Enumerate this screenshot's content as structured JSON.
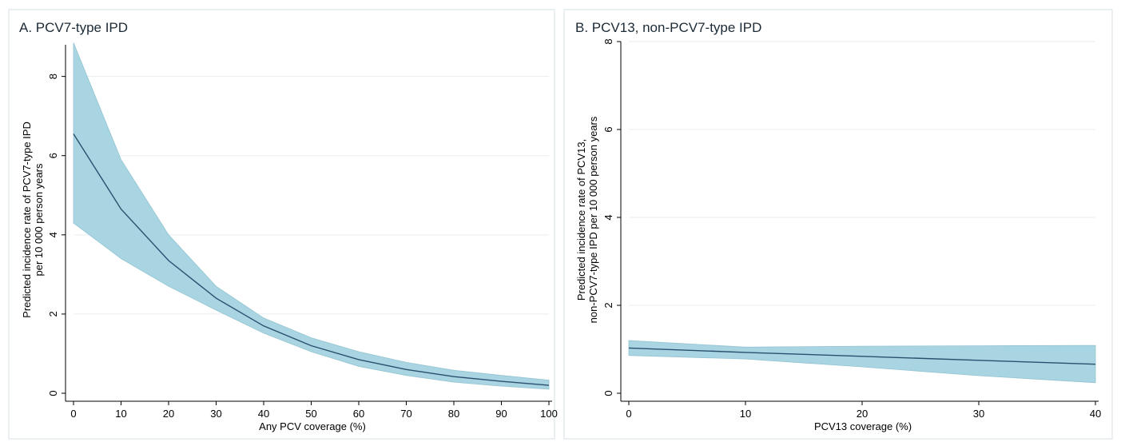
{
  "figure": {
    "accent_band_color": "#a8d5e1",
    "line_color": "#2b4f6e"
  },
  "chart_data": [
    {
      "type": "line",
      "title": "A. PCV7-type IPD",
      "xlabel": "Any PCV coverage (%)",
      "ylabel_lines": [
        "Predicted incidence rate of PCV7-type IPD",
        "per 10 000 person years"
      ],
      "xlim": [
        0,
        100
      ],
      "ylim": [
        0,
        8.8
      ],
      "xticks": [
        0,
        10,
        20,
        30,
        40,
        50,
        60,
        70,
        80,
        90,
        100
      ],
      "yticks": [
        0,
        2,
        4,
        6,
        8
      ],
      "grid": true,
      "x": [
        0,
        10,
        20,
        30,
        40,
        50,
        60,
        70,
        80,
        90,
        100
      ],
      "series": [
        {
          "role": "estimate",
          "values": [
            6.55,
            4.65,
            3.35,
            2.4,
            1.7,
            1.2,
            0.85,
            0.6,
            0.42,
            0.3,
            0.2
          ]
        },
        {
          "role": "upper",
          "values": [
            8.85,
            5.9,
            4.0,
            2.7,
            1.9,
            1.4,
            1.05,
            0.78,
            0.58,
            0.45,
            0.33
          ]
        },
        {
          "role": "lower",
          "values": [
            4.3,
            3.4,
            2.7,
            2.1,
            1.52,
            1.05,
            0.68,
            0.45,
            0.28,
            0.18,
            0.1
          ]
        }
      ]
    },
    {
      "type": "line",
      "title": "B. PCV13, non-PCV7-type IPD",
      "xlabel": "PCV13 coverage (%)",
      "ylabel_lines": [
        "Predicted incidence rate of PCV13,",
        "non-PCV7-type IPD per 10 000 person years"
      ],
      "xlim": [
        0,
        40
      ],
      "ylim": [
        0,
        8.0
      ],
      "xticks": [
        0,
        10,
        20,
        30,
        40
      ],
      "yticks": [
        0,
        2,
        4,
        6,
        8
      ],
      "grid": true,
      "x": [
        0,
        10,
        20,
        30,
        40
      ],
      "series": [
        {
          "role": "estimate",
          "values": [
            1.03,
            0.93,
            0.84,
            0.75,
            0.66
          ]
        },
        {
          "role": "upper",
          "values": [
            1.2,
            1.05,
            1.07,
            1.08,
            1.09
          ]
        },
        {
          "role": "lower",
          "values": [
            0.86,
            0.78,
            0.6,
            0.4,
            0.24
          ]
        }
      ]
    }
  ]
}
